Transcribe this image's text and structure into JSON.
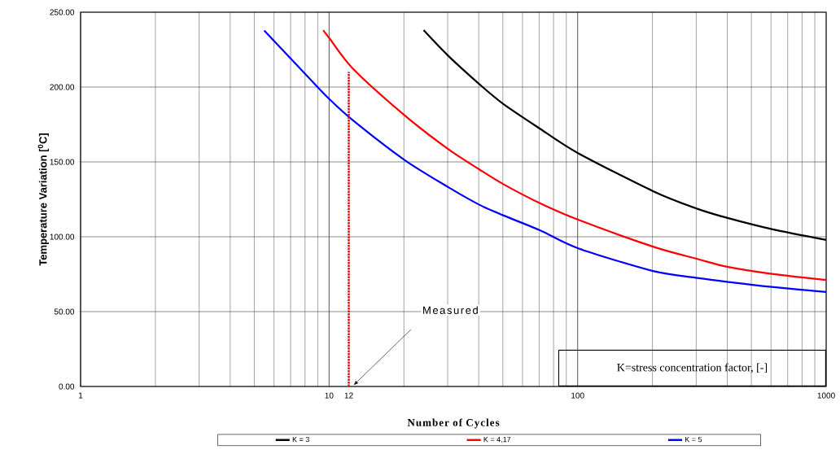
{
  "chart_data": {
    "type": "line",
    "xlabel": "Number of Cycles",
    "ylabel": "Temperature Variation [$^{0}$C]",
    "log": "x",
    "grid": true,
    "legend": "bottom",
    "marker": "none",
    "line_style": "solid",
    "xlim": [
      1,
      1000
    ],
    "xticks": [
      1,
      10,
      {
        "value": 12,
        "label": "12"
      },
      100,
      1000
    ],
    "ylim": [
      0,
      250
    ],
    "yticks": [
      {
        "value": 0,
        "label": "0.00"
      },
      {
        "value": 50,
        "label": "50.00"
      },
      {
        "value": 100,
        "label": "100.00"
      },
      {
        "value": 150,
        "label": "150.00"
      },
      {
        "value": 200,
        "label": "200.00"
      },
      {
        "value": 250,
        "label": "250.00"
      }
    ],
    "series": [
      {
        "name": "K = 3",
        "color": "#000000",
        "x": [
          24,
          30.1,
          40.2,
          50.4,
          70.8,
          100,
          201,
          303,
          404,
          604,
          1000
        ],
        "values": [
          238,
          221,
          202,
          188.5,
          172,
          156,
          130.5,
          118.7,
          112.4,
          105.1,
          97.9
        ]
      },
      {
        "name": "K = 4,17",
        "color": "#ff0000",
        "x": [
          9.46,
          10,
          12.5,
          20.1,
          30.1,
          40.2,
          50.4,
          70.8,
          100,
          201,
          303,
          404,
          604,
          1000
        ],
        "values": [
          238,
          232.9,
          212.1,
          181.2,
          158.6,
          145,
          135,
          122.3,
          111.5,
          93.4,
          85.2,
          79.8,
          75.2,
          71.1
        ]
      },
      {
        "name": "K = 5",
        "color": "#0000ff",
        "x": [
          5.48,
          8.34,
          10,
          12.5,
          20.1,
          30.1,
          40.2,
          50.4,
          70.8,
          100,
          201,
          303,
          404,
          604,
          1000
        ],
        "values": [
          237.8,
          205.7,
          192.1,
          177.6,
          151.3,
          133.2,
          121.4,
          114.2,
          104.2,
          92.4,
          77.1,
          72.5,
          69.8,
          66.5,
          63.1
        ]
      },
      {
        "color": "#ff0000",
        "line_style": "dotted",
        "x": [
          12,
          12
        ],
        "values": [
          0,
          210
        ]
      }
    ],
    "annotations": [
      "K=stress concentration factor, [-]",
      "Measured"
    ]
  }
}
